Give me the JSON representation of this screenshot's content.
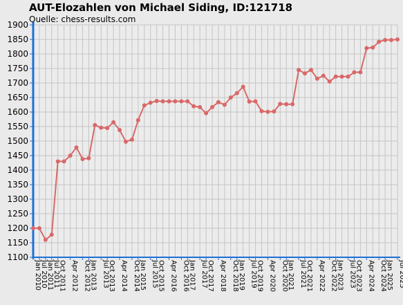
{
  "header": {
    "title": "AUT-Elozahlen von Michael Siding, ID:121718",
    "source": "Quelle: chess-results.com"
  },
  "chart_data": {
    "type": "line",
    "title": "AUT-Elozahlen von Michael Siding, ID:121718",
    "subtitle": "Quelle: chess-results.com",
    "xlabel": "",
    "ylabel": "",
    "ylim": [
      1100,
      1900
    ],
    "ytick_step": 50,
    "grid": true,
    "legend": "none",
    "line_color": "#d96868",
    "axis_color": "#1e6fd6",
    "x_tick_labels": [
      "Jan 2010",
      "Jan 2011",
      "Jul 2011",
      "Apr 2012",
      "Jan 2013",
      "Jul 2013",
      "Apr 2014",
      "Jan 2015",
      "Jul 2015",
      "Apr 2016",
      "Jan 2017",
      "Jul 2017",
      "Apr 2018",
      "Jan 2019",
      "Jul 2019",
      "Apr 2020",
      "Jan 2021",
      "Jul 2021",
      "Apr 2022",
      "Jan 2023",
      "Jul 2023",
      "Apr 2024",
      "Jan 2025",
      "Jul 2025"
    ],
    "x_tick_labels_mid": [
      "Jul 2010",
      "Oct 2011",
      "Oct 2012",
      "Oct 2013",
      "Oct 2014",
      "Oct 2015",
      "Oct 2016",
      "Oct 2017",
      "Oct 2018",
      "Oct 2019",
      "Oct 2020",
      "Oct 2021",
      "Oct 2022",
      "Oct 2023",
      "Oct 2024"
    ],
    "x": [
      "Jan 2010",
      "Jul 2010",
      "Jan 2011",
      "Jul 2011",
      "Oct 2011",
      "Jan 2012",
      "Apr 2012",
      "Jul 2012",
      "Oct 2012",
      "Jan 2013",
      "Apr 2013",
      "Jul 2013",
      "Oct 2013",
      "Jan 2014",
      "Apr 2014",
      "Jul 2014",
      "Oct 2014",
      "Jan 2015",
      "Apr 2015",
      "Jul 2015",
      "Oct 2015",
      "Jan 2016",
      "Apr 2016",
      "Jul 2016",
      "Oct 2016",
      "Jan 2017",
      "Apr 2017",
      "Jul 2017",
      "Oct 2017",
      "Jan 2018",
      "Apr 2018",
      "Jul 2018",
      "Oct 2018",
      "Jan 2019",
      "Apr 2019",
      "Jul 2019",
      "Oct 2019",
      "Jan 2020",
      "Apr 2020",
      "Jul 2020",
      "Oct 2020",
      "Jan 2021",
      "Apr 2021",
      "Jul 2021",
      "Oct 2021",
      "Jan 2022",
      "Apr 2022",
      "Jul 2022",
      "Oct 2022",
      "Jan 2023",
      "Apr 2023",
      "Jul 2023",
      "Oct 2023",
      "Jan 2024",
      "Apr 2024",
      "Jul 2024",
      "Oct 2024",
      "Jan 2025",
      "Apr 2025",
      "Jul 2025"
    ],
    "values": [
      1200,
      1200,
      1160,
      1178,
      1430,
      1430,
      1450,
      1478,
      1438,
      1441,
      1555,
      1546,
      1545,
      1565,
      1538,
      1498,
      1505,
      1572,
      1623,
      1632,
      1638,
      1637,
      1637,
      1637,
      1637,
      1637,
      1620,
      1617,
      1596,
      1617,
      1634,
      1625,
      1650,
      1665,
      1687,
      1636,
      1637,
      1603,
      1601,
      1602,
      1628,
      1627,
      1627,
      1745,
      1733,
      1745,
      1715,
      1725,
      1705,
      1722,
      1722,
      1722,
      1737,
      1737,
      1820,
      1822,
      1842,
      1848,
      1848,
      1850
    ]
  }
}
